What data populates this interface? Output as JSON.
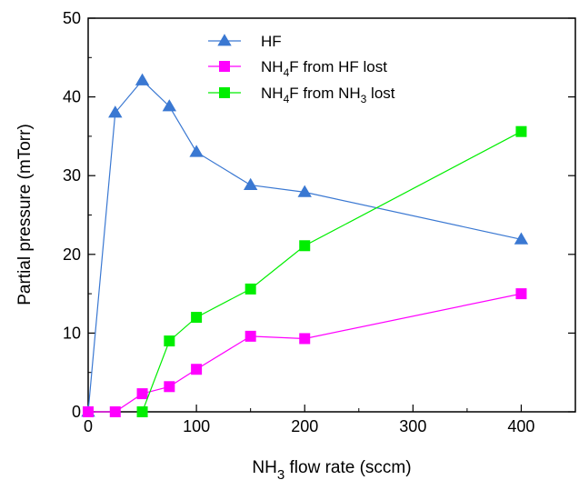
{
  "chart_data": {
    "type": "line",
    "xlabel": {
      "pre": "NH",
      "sub": "3",
      "post": "  flow rate (sccm)"
    },
    "ylabel": "Partial pressure (mTorr)",
    "xlim": [
      0,
      450
    ],
    "ylim": [
      0,
      50
    ],
    "x_ticks": [
      "0",
      "100",
      "200",
      "300",
      "400"
    ],
    "y_ticks": [
      "0",
      "10",
      "20",
      "30",
      "40",
      "50"
    ],
    "legend_position": "top-center",
    "series": [
      {
        "name": "HF",
        "legend": {
          "pre": "HF",
          "sub1": "",
          "mid": "",
          "sub2": "",
          "post": ""
        },
        "marker": "triangle",
        "color": "#3a78d2",
        "line_color": "#3a78d2",
        "x": [
          0,
          25,
          50,
          75,
          100,
          150,
          200,
          400
        ],
        "y": [
          0,
          38,
          42.1,
          38.8,
          33,
          28.8,
          27.9,
          21.9
        ]
      },
      {
        "name": "NH4F from HF lost",
        "legend": {
          "pre": "NH",
          "sub1": "4",
          "mid": "F from HF lost",
          "sub2": "",
          "post": ""
        },
        "marker": "square",
        "color": "#ff00ff",
        "line_color": "#ff00ff",
        "x": [
          0,
          25,
          50,
          75,
          100,
          150,
          200,
          400
        ],
        "y": [
          0,
          0,
          2.3,
          3.2,
          5.4,
          9.6,
          9.3,
          15
        ]
      },
      {
        "name": "NH4F from NH3 lost",
        "legend": {
          "pre": "NH",
          "sub1": "4",
          "mid": "F from NH",
          "sub2": "3",
          "post": " lost"
        },
        "marker": "square",
        "color": "#00ee00",
        "line_color": "#00ee00",
        "x": [
          50,
          75,
          100,
          150,
          200,
          400
        ],
        "y": [
          0,
          9,
          12,
          15.6,
          21.1,
          35.6
        ]
      }
    ]
  }
}
